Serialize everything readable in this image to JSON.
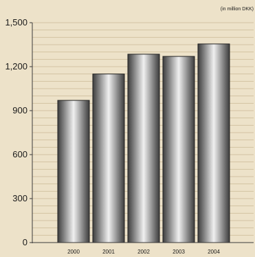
{
  "chart_data": {
    "type": "bar",
    "title": "",
    "unit_note": "(in million DKK)",
    "xlabel": "",
    "ylabel": "",
    "categories": [
      "2000",
      "2001",
      "2002",
      "2003",
      "2004"
    ],
    "values": [
      970,
      1150,
      1285,
      1270,
      1355
    ],
    "ylim": [
      0,
      1500
    ],
    "yticks": [
      0,
      300,
      600,
      900,
      1200,
      1500
    ],
    "ytick_labels": [
      "0",
      "300",
      "600",
      "900",
      "1,200",
      "1,500"
    ],
    "grid": true,
    "legend": "none",
    "colors": {
      "background": "#ede2c9",
      "gridline": "#d2c3a2",
      "axis": "#3a3a3a",
      "bar_dark": "#3c3c3c",
      "bar_light": "#f0f0f0",
      "bar_outline": "#222222"
    }
  }
}
